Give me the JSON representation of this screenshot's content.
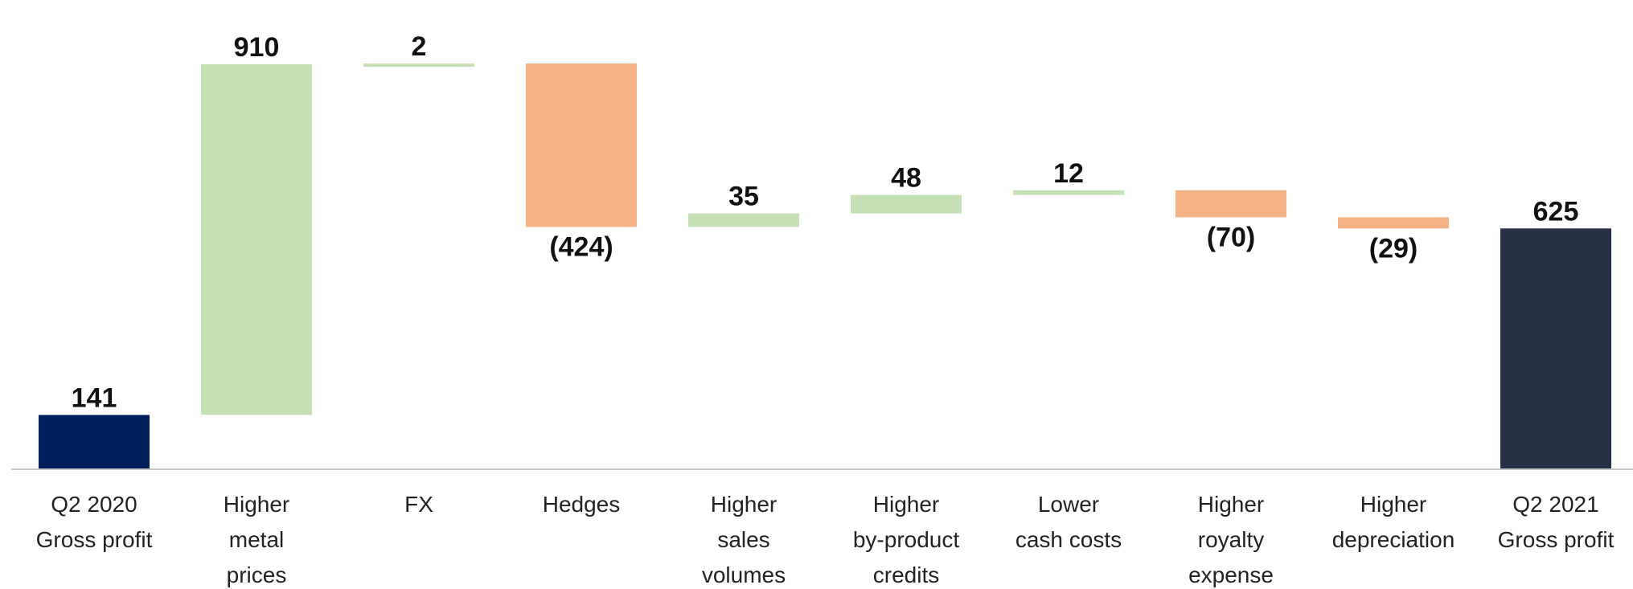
{
  "chart_data": {
    "type": "bar",
    "subtype": "waterfall",
    "categories": [
      [
        "Q2 2020",
        "Gross profit"
      ],
      [
        "Higher",
        "metal",
        "prices"
      ],
      [
        "FX"
      ],
      [
        "Hedges"
      ],
      [
        "Higher",
        "sales",
        "volumes"
      ],
      [
        "Higher",
        "by-product",
        "credits"
      ],
      [
        "Lower",
        "cash costs"
      ],
      [
        "Higher",
        "royalty",
        "expense"
      ],
      [
        "Higher",
        "depreciation"
      ],
      [
        "Q2 2021",
        "Gross profit"
      ]
    ],
    "values": [
      141,
      910,
      2,
      -424,
      35,
      48,
      12,
      -70,
      -29,
      625
    ],
    "labels": [
      "141",
      "910",
      "2",
      "(424)",
      "35",
      "48",
      "12",
      "(70)",
      "(29)",
      "625"
    ],
    "kinds": [
      "total",
      "delta",
      "delta",
      "delta",
      "delta",
      "delta",
      "delta",
      "delta",
      "delta",
      "total"
    ],
    "title": "",
    "xlabel": "",
    "ylabel": "",
    "grid": false,
    "colors": {
      "start_total": "#00205b",
      "end_total": "#263046",
      "increase": "#c5e0b4",
      "decrease": "#f4b183",
      "axis": "#c8c8c8"
    }
  }
}
